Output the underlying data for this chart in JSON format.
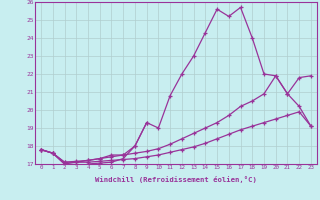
{
  "xlabel": "Windchill (Refroidissement éolien,°C)",
  "xlim": [
    -0.5,
    23.5
  ],
  "ylim": [
    17,
    26
  ],
  "xticks": [
    0,
    1,
    2,
    3,
    4,
    5,
    6,
    7,
    8,
    9,
    10,
    11,
    12,
    13,
    14,
    15,
    16,
    17,
    18,
    19,
    20,
    21,
    22,
    23
  ],
  "yticks": [
    17,
    18,
    19,
    20,
    21,
    22,
    23,
    24,
    25,
    26
  ],
  "bg_color": "#c8eef0",
  "grid_color": "#b0cece",
  "line_color": "#993399",
  "main_x": [
    0,
    1,
    2,
    3,
    4,
    5,
    6,
    7,
    8,
    9,
    10,
    11,
    12,
    13,
    14,
    15,
    16,
    17,
    18,
    19,
    20,
    21,
    22,
    23
  ],
  "main_y": [
    17.8,
    17.6,
    17.0,
    17.1,
    17.2,
    17.3,
    17.5,
    17.5,
    18.0,
    19.3,
    19.0,
    20.8,
    22.0,
    23.0,
    24.3,
    25.6,
    25.2,
    25.7,
    24.0,
    22.0,
    21.9,
    20.9,
    20.2,
    19.1
  ],
  "line2_x": [
    0,
    1,
    2,
    3,
    4,
    5,
    6,
    7,
    8,
    9,
    10,
    11,
    12,
    13,
    14,
    15,
    16,
    17,
    18,
    19,
    20,
    21,
    22,
    23
  ],
  "line2_y": [
    17.8,
    17.6,
    17.1,
    17.15,
    17.2,
    17.3,
    17.4,
    17.5,
    17.6,
    17.7,
    17.85,
    18.1,
    18.4,
    18.7,
    19.0,
    19.3,
    19.7,
    20.2,
    20.5,
    20.9,
    21.9,
    20.9,
    21.8,
    21.9
  ],
  "line3_x": [
    0,
    1,
    2,
    3,
    4,
    5,
    6,
    7,
    8,
    9,
    10,
    11,
    12,
    13,
    14,
    15,
    16,
    17,
    18,
    19,
    20,
    21,
    22,
    23
  ],
  "line3_y": [
    17.8,
    17.6,
    17.1,
    17.1,
    17.1,
    17.15,
    17.2,
    17.25,
    17.3,
    17.4,
    17.5,
    17.65,
    17.8,
    17.95,
    18.15,
    18.4,
    18.65,
    18.9,
    19.1,
    19.3,
    19.5,
    19.7,
    19.9,
    19.1
  ],
  "line4_x": [
    0,
    1,
    2,
    3,
    4,
    5,
    6,
    7,
    8,
    9
  ],
  "line4_y": [
    17.8,
    17.6,
    17.0,
    16.7,
    17.0,
    17.05,
    17.1,
    17.3,
    18.0,
    19.3
  ]
}
